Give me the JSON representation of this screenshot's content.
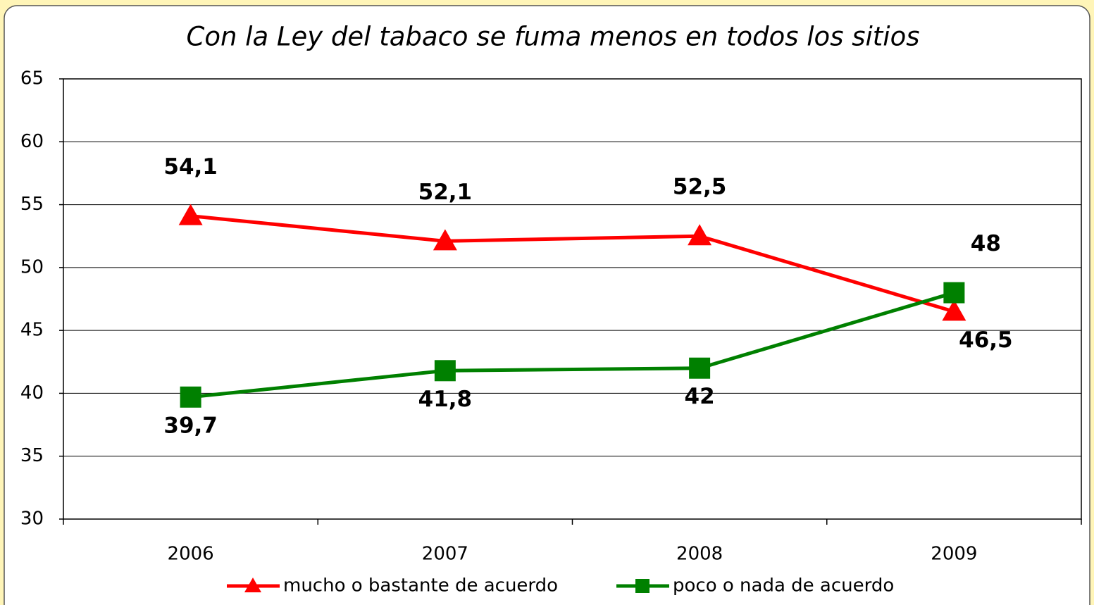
{
  "chart_data": {
    "type": "line",
    "title": "Con la Ley del tabaco se fuma menos en todos los sitios",
    "categories": [
      "2006",
      "2007",
      "2008",
      "2009"
    ],
    "series": [
      {
        "name": "mucho o bastante de acuerdo",
        "color": "#ff0000",
        "marker": "triangle",
        "values": [
          54.1,
          52.1,
          52.5,
          46.5
        ],
        "value_labels": [
          "54,1",
          "52,1",
          "52,5",
          "46,5"
        ]
      },
      {
        "name": "poco o nada de acuerdo",
        "color": "#008000",
        "marker": "square",
        "values": [
          39.7,
          41.8,
          42,
          48
        ],
        "value_labels": [
          "39,7",
          "41,8",
          "42",
          "48"
        ]
      }
    ],
    "ylim": [
      30,
      65
    ],
    "yticks": [
      30,
      35,
      40,
      45,
      50,
      55,
      60,
      65
    ],
    "grid": true,
    "legend": "bottom"
  }
}
